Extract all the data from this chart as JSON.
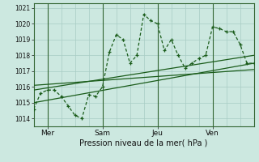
{
  "xlabel": "Pression niveau de la mer( hPa )",
  "bg_color": "#cce8e0",
  "grid_color": "#a8ccc4",
  "line_color": "#1a5c1a",
  "vline_color": "#336633",
  "ylim": [
    1013.5,
    1021.3
  ],
  "xlim": [
    0,
    96
  ],
  "yticks": [
    1014,
    1015,
    1016,
    1017,
    1018,
    1019,
    1020,
    1021
  ],
  "xtick_positions": [
    6,
    30,
    54,
    78
  ],
  "xtick_labels": [
    "Mer",
    "Sam",
    "Jeu",
    "Ven"
  ],
  "vlines": [
    6,
    30,
    54,
    78
  ],
  "main_x": [
    0,
    3,
    6,
    9,
    12,
    15,
    18,
    21,
    24,
    27,
    30,
    33,
    36,
    39,
    42,
    45,
    48,
    51,
    54,
    57,
    60,
    63,
    66,
    69,
    72,
    75,
    78,
    81,
    84,
    87,
    90,
    93,
    96
  ],
  "main_y": [
    1014.6,
    1015.6,
    1015.8,
    1015.8,
    1015.4,
    1014.8,
    1014.2,
    1014.0,
    1015.5,
    1015.4,
    1016.0,
    1018.2,
    1019.3,
    1019.0,
    1017.5,
    1018.0,
    1020.6,
    1020.2,
    1020.0,
    1018.3,
    1019.0,
    1018.0,
    1017.2,
    1017.5,
    1017.8,
    1018.0,
    1019.8,
    1019.7,
    1019.5,
    1019.5,
    1018.7,
    1017.5,
    1017.5
  ],
  "line1_x": [
    0,
    96
  ],
  "line1_y": [
    1015.0,
    1017.5
  ],
  "line2_x": [
    0,
    96
  ],
  "line2_y": [
    1015.8,
    1018.0
  ],
  "line3_x": [
    0,
    96
  ],
  "line3_y": [
    1016.1,
    1017.1
  ]
}
